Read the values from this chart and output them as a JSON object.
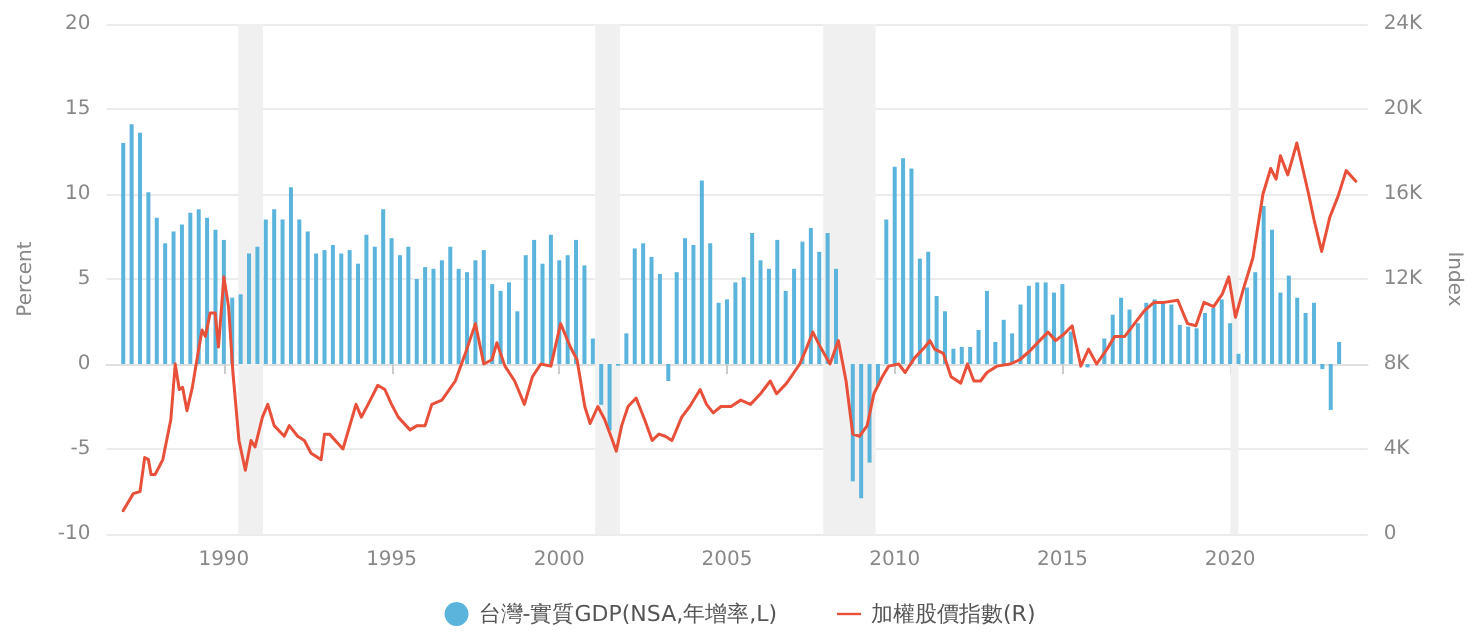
{
  "chart_data": {
    "type": "bar",
    "xlim": [
      1986.5,
      2024.1
    ],
    "xticks": [
      1990,
      1995,
      2000,
      2005,
      2010,
      2015,
      2020
    ],
    "ylim": [
      -10,
      20
    ],
    "yticks": [
      -10,
      -5,
      0,
      5,
      10,
      15,
      20
    ],
    "ylabel": "Percent",
    "y2lim": [
      0,
      24000
    ],
    "y2ticks": [
      {
        "value": 0,
        "label": "0"
      },
      {
        "value": 4000,
        "label": "4K"
      },
      {
        "value": 8000,
        "label": "8K"
      },
      {
        "value": 12000,
        "label": "12K"
      },
      {
        "value": 16000,
        "label": "16K"
      },
      {
        "value": 20000,
        "label": "20K"
      },
      {
        "value": 24000,
        "label": "24K"
      }
    ],
    "y2label": "Index",
    "grid": "y",
    "legend": "bottom",
    "marker": "none",
    "line_style": "solid",
    "bands": [
      {
        "axis": "x",
        "from": 1990.43,
        "to": 1991.17,
        "color": "#f0f0f0"
      },
      {
        "axis": "x",
        "from": 2001.07,
        "to": 2001.81,
        "color": "#f0f0f0"
      },
      {
        "axis": "x",
        "from": 2007.87,
        "to": 2009.43,
        "color": "#f0f0f0"
      },
      {
        "axis": "x",
        "from": 2020.01,
        "to": 2020.25,
        "color": "#f0f0f0"
      }
    ],
    "series": [
      {
        "name": "台灣-實質GDP(NSA,年增率,L)",
        "color": "#5ab4dc",
        "x": [
          1987,
          1987.25,
          1987.5,
          1987.75,
          1988,
          1988.25,
          1988.5,
          1988.75,
          1989,
          1989.25,
          1989.5,
          1989.75,
          1990,
          1990.25,
          1990.5,
          1990.75,
          1991,
          1991.25,
          1991.5,
          1991.75,
          1992,
          1992.25,
          1992.5,
          1992.75,
          1993,
          1993.25,
          1993.5,
          1993.75,
          1994,
          1994.25,
          1994.5,
          1994.75,
          1995,
          1995.25,
          1995.5,
          1995.75,
          1996,
          1996.25,
          1996.5,
          1996.75,
          1997,
          1997.25,
          1997.5,
          1997.75,
          1998,
          1998.25,
          1998.5,
          1998.75,
          1999,
          1999.25,
          1999.5,
          1999.75,
          2000,
          2000.25,
          2000.5,
          2000.75,
          2001,
          2001.25,
          2001.5,
          2001.75,
          2002,
          2002.25,
          2002.5,
          2002.75,
          2003,
          2003.25,
          2003.5,
          2003.75,
          2004,
          2004.25,
          2004.5,
          2004.75,
          2005,
          2005.25,
          2005.5,
          2005.75,
          2006,
          2006.25,
          2006.5,
          2006.75,
          2007,
          2007.25,
          2007.5,
          2007.75,
          2008,
          2008.25,
          2008.5,
          2008.75,
          2009,
          2009.25,
          2009.5,
          2009.75,
          2010,
          2010.25,
          2010.5,
          2010.75,
          2011,
          2011.25,
          2011.5,
          2011.75,
          2012,
          2012.25,
          2012.5,
          2012.75,
          2013,
          2013.25,
          2013.5,
          2013.75,
          2014,
          2014.25,
          2014.5,
          2014.75,
          2015,
          2015.25,
          2015.5,
          2015.75,
          2016,
          2016.25,
          2016.5,
          2016.75,
          2017,
          2017.25,
          2017.5,
          2017.75,
          2018,
          2018.25,
          2018.5,
          2018.75,
          2019,
          2019.25,
          2019.5,
          2019.75,
          2020,
          2020.25,
          2020.5,
          2020.75,
          2021,
          2021.25,
          2021.5,
          2021.75,
          2022,
          2022.25,
          2022.5,
          2022.75,
          2023,
          2023.25
        ],
        "values": [
          13.0,
          14.1,
          13.6,
          10.1,
          8.6,
          7.1,
          7.8,
          8.2,
          8.9,
          9.1,
          8.6,
          7.9,
          7.3,
          3.9,
          4.1,
          6.5,
          6.9,
          8.5,
          9.1,
          8.5,
          10.4,
          8.5,
          7.8,
          6.5,
          6.7,
          7.0,
          6.5,
          6.7,
          5.9,
          7.6,
          6.9,
          9.1,
          7.4,
          6.4,
          6.9,
          5.0,
          5.7,
          5.6,
          6.1,
          6.9,
          5.6,
          5.4,
          6.1,
          6.7,
          4.7,
          4.3,
          4.8,
          3.1,
          6.4,
          7.3,
          5.9,
          7.6,
          6.1,
          6.4,
          7.3,
          5.8,
          1.5,
          -2.4,
          -3.9,
          -0.1,
          1.8,
          6.8,
          7.1,
          6.3,
          5.3,
          -1.0,
          5.4,
          7.4,
          7.0,
          10.8,
          7.1,
          3.6,
          3.8,
          4.8,
          5.1,
          7.7,
          6.1,
          5.6,
          7.3,
          4.3,
          5.6,
          7.2,
          8.0,
          6.6,
          7.7,
          5.6,
          null,
          -6.9,
          -7.9,
          -5.8,
          -1.3,
          8.5,
          11.6,
          12.1,
          11.5,
          6.2,
          6.6,
          4.0,
          3.1,
          0.9,
          1.0,
          1.0,
          2.0,
          4.3,
          1.3,
          2.6,
          1.8,
          3.5,
          4.6,
          4.8,
          4.8,
          4.2,
          4.7,
          1.9,
          null,
          -0.2,
          null,
          1.5,
          2.9,
          3.9,
          3.2,
          2.4,
          3.6,
          3.8,
          3.6,
          3.5,
          2.3,
          2.2,
          2.1,
          3.0,
          3.3,
          3.8,
          2.4,
          0.6,
          4.5,
          5.4,
          9.3,
          7.9,
          4.2,
          5.2,
          3.9,
          3.0,
          3.6,
          -0.3,
          -2.7,
          1.3
        ]
      },
      {
        "name": "加權股價指數(R)",
        "type": "line",
        "axis": "y2",
        "color": "#e8503a",
        "x": [
          1987.0,
          1987.3,
          1987.5,
          1987.64,
          1987.75,
          1987.83,
          1987.95,
          1988.18,
          1988.42,
          1988.55,
          1988.67,
          1988.77,
          1988.9,
          1989.06,
          1989.26,
          1989.35,
          1989.45,
          1989.59,
          1989.74,
          1989.84,
          1990.0,
          1990.14,
          1990.27,
          1990.45,
          1990.64,
          1990.81,
          1990.93,
          1991.15,
          1991.31,
          1991.5,
          1991.8,
          1991.95,
          1992.2,
          1992.4,
          1992.6,
          1992.9,
          1993.0,
          1993.15,
          1993.55,
          1993.94,
          1994.1,
          1994.3,
          1994.59,
          1994.8,
          1995.0,
          1995.2,
          1995.55,
          1995.76,
          1996.0,
          1996.2,
          1996.5,
          1996.9,
          1997.2,
          1997.5,
          1997.75,
          1997.99,
          1998.14,
          1998.38,
          1998.67,
          1998.96,
          1999.2,
          1999.45,
          1999.75,
          2000.04,
          2000.33,
          2000.53,
          2000.76,
          2000.92,
          2001.15,
          2001.35,
          2001.54,
          2001.7,
          2001.86,
          2002.05,
          2002.29,
          2002.54,
          2002.77,
          2002.97,
          2003.16,
          2003.36,
          2003.65,
          2003.89,
          2004.2,
          2004.39,
          2004.59,
          2004.82,
          2005.12,
          2005.41,
          2005.7,
          2006.0,
          2006.29,
          2006.48,
          2006.78,
          2007.17,
          2007.36,
          2007.56,
          2007.75,
          2008.07,
          2008.32,
          2008.55,
          2008.75,
          2008.95,
          2009.18,
          2009.38,
          2009.63,
          2009.82,
          2010.12,
          2010.31,
          2010.6,
          2010.9,
          2011.05,
          2011.19,
          2011.45,
          2011.68,
          2011.97,
          2012.17,
          2012.36,
          2012.56,
          2012.75,
          2013.05,
          2013.44,
          2013.73,
          2014.02,
          2014.32,
          2014.57,
          2014.8,
          2015.04,
          2015.29,
          2015.55,
          2015.78,
          2016.02,
          2016.33,
          2016.56,
          2016.86,
          2017.15,
          2017.44,
          2017.73,
          2018.03,
          2018.44,
          2018.73,
          2018.98,
          2019.22,
          2019.51,
          2019.77,
          2019.96,
          2020.16,
          2020.39,
          2020.68,
          2020.98,
          2021.21,
          2021.37,
          2021.5,
          2021.72,
          2021.99,
          2022.34,
          2022.5,
          2022.73,
          2022.97,
          2023.22,
          2023.46,
          2023.75
        ],
        "values": [
          1100,
          1900,
          2000,
          3600,
          3500,
          2800,
          2800,
          3500,
          5400,
          8000,
          6800,
          6900,
          5800,
          6900,
          8800,
          9600,
          9300,
          10400,
          10400,
          8800,
          12100,
          10700,
          7600,
          4400,
          3000,
          4400,
          4100,
          5500,
          6100,
          5100,
          4600,
          5100,
          4600,
          4400,
          3800,
          3500,
          4700,
          4700,
          4000,
          6100,
          5500,
          6100,
          7000,
          6800,
          6100,
          5500,
          4900,
          5100,
          5100,
          6100,
          6300,
          7200,
          8500,
          9900,
          8000,
          8200,
          9000,
          7900,
          7200,
          6100,
          7400,
          8000,
          7900,
          9900,
          8800,
          8200,
          6000,
          5200,
          6000,
          5400,
          4600,
          3900,
          5100,
          6000,
          6400,
          5400,
          4400,
          4700,
          4600,
          4400,
          5500,
          6000,
          6800,
          6100,
          5700,
          6000,
          6000,
          6300,
          6100,
          6600,
          7200,
          6600,
          7100,
          8000,
          8700,
          9500,
          8900,
          8000,
          9100,
          7200,
          4700,
          4600,
          5100,
          6600,
          7400,
          7900,
          8000,
          7600,
          8300,
          8800,
          9100,
          8700,
          8500,
          7400,
          7100,
          8000,
          7200,
          7200,
          7600,
          7900,
          8000,
          8200,
          8600,
          9100,
          9500,
          9100,
          9400,
          9800,
          7900,
          8700,
          8000,
          8700,
          9300,
          9300,
          9900,
          10500,
          10900,
          10900,
          11000,
          9900,
          9800,
          10900,
          10700,
          11300,
          12100,
          10200,
          11500,
          13000,
          16000,
          17200,
          16700,
          17800,
          16900,
          18400,
          16000,
          14800,
          13300,
          14900,
          15900,
          17100,
          16600
        ]
      }
    ]
  }
}
